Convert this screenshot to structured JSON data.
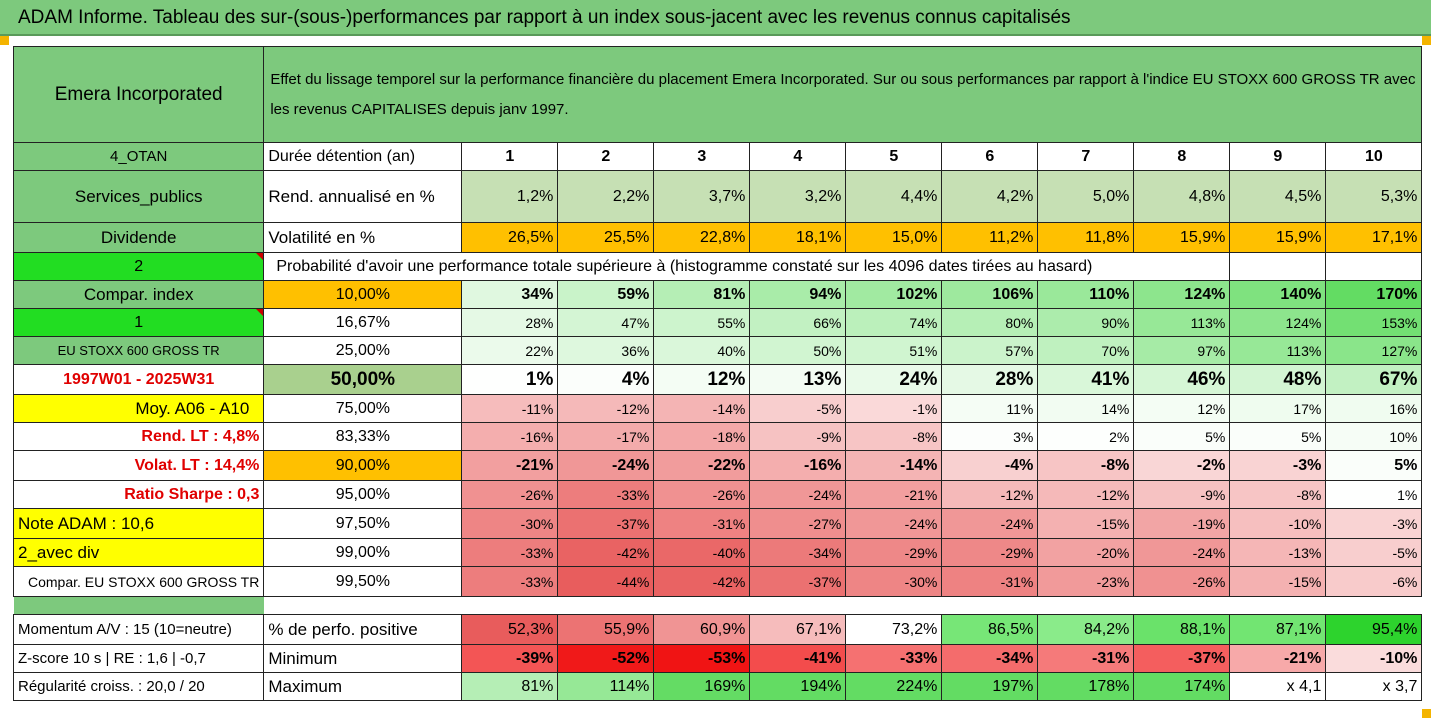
{
  "title": "ADAM Informe. Tableau des sur-(sous-)performances par rapport à un index sous-jacent avec les revenus connus capitalisés",
  "company": "Emera Incorporated",
  "description": "Effet du lissage temporel sur la performance financière du placement Emera Incorporated. Sur ou sous performances par rapport à l'indice EU STOXX 600 GROSS TR avec les revenus CAPITALISES depuis janv 1997.",
  "left_labels": {
    "code": "4_OTAN",
    "sector": "Services_publics",
    "dividend": "Dividende",
    "two": "2",
    "compar_index": "Compar. index",
    "one": "1",
    "index_name": "EU STOXX 600 GROSS TR",
    "period": "1997W01 - 2025W31",
    "moy": "Moy. A06 - A10",
    "rend_lt": "Rend. LT :   4,8%",
    "volat_lt": "Volat. LT :   14,4%",
    "sharpe": "Ratio Sharpe :   0,3",
    "note": "Note ADAM : 10,6",
    "avec_div": "2_avec div",
    "compar_full": "Compar. EU STOXX 600 GROSS TR",
    "momentum": "Momentum A/V : 15 (10=neutre)",
    "zscore": "Z-score 10 s  | RE : 1,6 | -0,7",
    "regularite": "Régularité croiss. : 20,0 / 20"
  },
  "row_labels": {
    "duree": "Durée détention (an)",
    "rend": "Rend. annualisé en %",
    "volat": "Volatilité en %",
    "proba": "Probabilité d'avoir une performance totale supérieure à (histogramme constaté sur les 4096 dates tirées au hasard)",
    "perfo_pos": "% de perfo. positive",
    "minimum": "Minimum",
    "maximum": "Maximum"
  },
  "years": [
    "1",
    "2",
    "3",
    "4",
    "5",
    "6",
    "7",
    "8",
    "9",
    "10"
  ],
  "rend": [
    "1,2%",
    "2,2%",
    "3,7%",
    "3,2%",
    "4,4%",
    "4,2%",
    "5,0%",
    "4,8%",
    "4,5%",
    "5,3%"
  ],
  "volat": [
    "26,5%",
    "25,5%",
    "22,8%",
    "18,1%",
    "15,0%",
    "11,2%",
    "11,8%",
    "15,9%",
    "15,9%",
    "17,1%"
  ],
  "percentile_rows": [
    {
      "pct": "10,00%",
      "values": [
        "34%",
        "59%",
        "81%",
        "94%",
        "102%",
        "106%",
        "110%",
        "124%",
        "140%",
        "170%"
      ]
    },
    {
      "pct": "16,67%",
      "values": [
        "28%",
        "47%",
        "55%",
        "66%",
        "74%",
        "80%",
        "90%",
        "113%",
        "124%",
        "153%"
      ]
    },
    {
      "pct": "25,00%",
      "values": [
        "22%",
        "36%",
        "40%",
        "50%",
        "51%",
        "57%",
        "70%",
        "97%",
        "113%",
        "127%"
      ]
    },
    {
      "pct": "50,00%",
      "values": [
        "1%",
        "4%",
        "12%",
        "13%",
        "24%",
        "28%",
        "41%",
        "46%",
        "48%",
        "67%"
      ]
    },
    {
      "pct": "75,00%",
      "values": [
        "-11%",
        "-12%",
        "-14%",
        "-5%",
        "-1%",
        "11%",
        "14%",
        "12%",
        "17%",
        "16%"
      ]
    },
    {
      "pct": "83,33%",
      "values": [
        "-16%",
        "-17%",
        "-18%",
        "-9%",
        "-8%",
        "3%",
        "2%",
        "5%",
        "5%",
        "10%"
      ]
    },
    {
      "pct": "90,00%",
      "values": [
        "-21%",
        "-24%",
        "-22%",
        "-16%",
        "-14%",
        "-4%",
        "-8%",
        "-2%",
        "-3%",
        "5%"
      ]
    },
    {
      "pct": "95,00%",
      "values": [
        "-26%",
        "-33%",
        "-26%",
        "-24%",
        "-21%",
        "-12%",
        "-12%",
        "-9%",
        "-8%",
        "1%"
      ]
    },
    {
      "pct": "97,50%",
      "values": [
        "-30%",
        "-37%",
        "-31%",
        "-27%",
        "-24%",
        "-24%",
        "-15%",
        "-19%",
        "-10%",
        "-3%"
      ]
    },
    {
      "pct": "99,00%",
      "values": [
        "-33%",
        "-42%",
        "-40%",
        "-34%",
        "-29%",
        "-29%",
        "-20%",
        "-24%",
        "-13%",
        "-5%"
      ]
    },
    {
      "pct": "99,50%",
      "values": [
        "-33%",
        "-44%",
        "-42%",
        "-37%",
        "-30%",
        "-31%",
        "-23%",
        "-26%",
        "-15%",
        "-6%"
      ]
    }
  ],
  "perfo_pos": [
    "52,3%",
    "55,9%",
    "60,9%",
    "67,1%",
    "73,2%",
    "86,5%",
    "84,2%",
    "88,1%",
    "87,1%",
    "95,4%"
  ],
  "minimum": [
    "-39%",
    "-52%",
    "-53%",
    "-41%",
    "-33%",
    "-34%",
    "-31%",
    "-37%",
    "-21%",
    "-10%"
  ],
  "maximum": [
    "81%",
    "114%",
    "169%",
    "194%",
    "224%",
    "197%",
    "178%",
    "174%",
    "x 4,1",
    "x 3,7"
  ],
  "colors": {
    "header_green": "#7dc97d",
    "bright_green": "#22dd22",
    "yellow": "#ffff00",
    "orange": "#ffc000",
    "rend_green": "#c6e0b4",
    "title_red": "#e00000"
  }
}
